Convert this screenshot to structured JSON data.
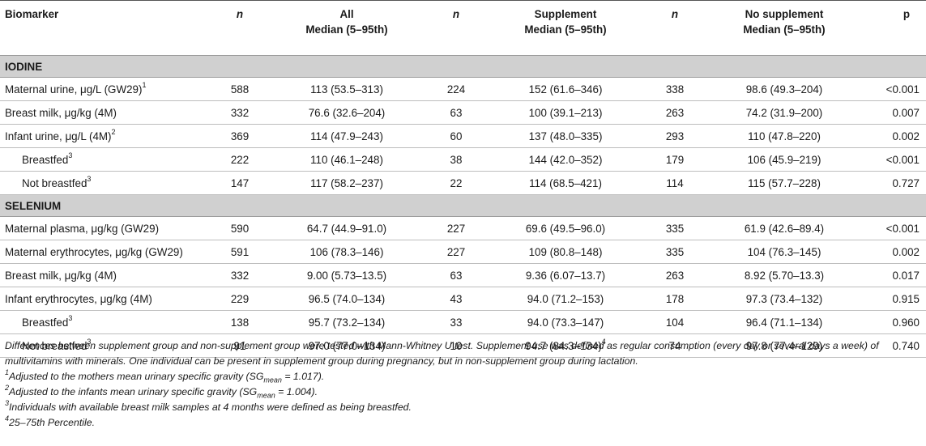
{
  "header": {
    "biomarker": "Biomarker",
    "n1": "n",
    "all_line1": "All",
    "all_line2": "Median (5–95th)",
    "n2": "n",
    "supp_line1": "Supplement",
    "supp_line2": "Median (5–95th)",
    "n3": "n",
    "nosupp_line1": "No supplement",
    "nosupp_line2": "Median (5–95th)",
    "p": "p"
  },
  "sections": [
    {
      "title": "IODINE",
      "rows": [
        {
          "label": "Maternal urine, μg/L (GW29)",
          "sup": "1",
          "n_all": "588",
          "all": "113 (53.5–313)",
          "n_supp": "224",
          "supp": "152 (61.6–346)",
          "supp_sup": "",
          "n_no": "338",
          "no": "98.6 (49.3–204)",
          "p": "<0.001",
          "indent": false
        },
        {
          "label": "Breast milk, μg/kg (4M)",
          "sup": "",
          "n_all": "332",
          "all": "76.6 (32.6–204)",
          "n_supp": "63",
          "supp": "100 (39.1–213)",
          "supp_sup": "",
          "n_no": "263",
          "no": "74.2 (31.9–200)",
          "p": "0.007",
          "indent": false
        },
        {
          "label": "Infant urine, μg/L (4M)",
          "sup": "2",
          "n_all": "369",
          "all": "114 (47.9–243)",
          "n_supp": "60",
          "supp": "137 (48.0–335)",
          "supp_sup": "",
          "n_no": "293",
          "no": "110 (47.8–220)",
          "p": "0.002",
          "indent": false
        },
        {
          "label": "Breastfed",
          "sup": "3",
          "n_all": "222",
          "all": "110 (46.1–248)",
          "n_supp": "38",
          "supp": "144 (42.0–352)",
          "supp_sup": "",
          "n_no": "179",
          "no": "106 (45.9–219)",
          "p": "<0.001",
          "indent": true
        },
        {
          "label": "Not breastfed",
          "sup": "3",
          "n_all": "147",
          "all": "117 (58.2–237)",
          "n_supp": "22",
          "supp": "114 (68.5–421)",
          "supp_sup": "",
          "n_no": "114",
          "no": "115 (57.7–228)",
          "p": "0.727",
          "indent": true
        }
      ]
    },
    {
      "title": "SELENIUM",
      "rows": [
        {
          "label": "Maternal plasma, μg/kg (GW29)",
          "sup": "",
          "n_all": "590",
          "all": "64.7 (44.9–91.0)",
          "n_supp": "227",
          "supp": "69.6 (49.5–96.0)",
          "supp_sup": "",
          "n_no": "335",
          "no": "61.9 (42.6–89.4)",
          "p": "<0.001",
          "indent": false
        },
        {
          "label": "Maternal erythrocytes, μg/kg (GW29)",
          "sup": "",
          "n_all": "591",
          "all": "106 (78.3–146)",
          "n_supp": "227",
          "supp": "109 (80.8–148)",
          "supp_sup": "",
          "n_no": "335",
          "no": "104 (76.3–145)",
          "p": "0.002",
          "indent": false
        },
        {
          "label": "Breast milk, μg/kg (4M)",
          "sup": "",
          "n_all": "332",
          "all": "9.00 (5.73–13.5)",
          "n_supp": "63",
          "supp": "9.36 (6.07–13.7)",
          "supp_sup": "",
          "n_no": "263",
          "no": "8.92 (5.70–13.3)",
          "p": "0.017",
          "indent": false
        },
        {
          "label": "Infant erythrocytes, μg/kg (4M)",
          "sup": "",
          "n_all": "229",
          "all": "96.5 (74.0–134)",
          "n_supp": "43",
          "supp": "94.0 (71.2–153)",
          "supp_sup": "",
          "n_no": "178",
          "no": "97.3 (73.4–132)",
          "p": "0.915",
          "indent": false
        },
        {
          "label": "Breastfed",
          "sup": "3",
          "n_all": "138",
          "all": "95.7 (73.2–134)",
          "n_supp": "33",
          "supp": "94.0 (73.3–147)",
          "supp_sup": "",
          "n_no": "104",
          "no": "96.4 (71.1–134)",
          "p": "0.960",
          "indent": true
        },
        {
          "label": "Not breastfed",
          "sup": "3",
          "n_all": "91",
          "all": "97.0 (77.0–134)",
          "n_supp": "10",
          "supp": "94.7 (84.3–134)",
          "supp_sup": "4",
          "n_no": "74",
          "no": "97.8 (77.4–129)",
          "p": "0.740",
          "indent": true
        }
      ]
    }
  ],
  "notes": {
    "main": "Differences between supplement group and non-supplement group were tested with Mann-Whitney U test. Supplement use was defined as regular consumption (every day or several days a week) of multivitamins with minerals. One individual can be present in supplement group during pregnancy, but in non-supplement group during lactation.",
    "fn1_num": "1",
    "fn1_pre": "Adjusted to the mothers mean urinary specific gravity (SG",
    "fn1_sub": "mean",
    "fn1_post": " = 1.017).",
    "fn2_num": "2",
    "fn2_pre": "Adjusted to the infants mean urinary specific gravity (SG",
    "fn2_sub": "mean",
    "fn2_post": " = 1.004).",
    "fn3_num": "3",
    "fn3_text": "Individuals with available breast milk samples at 4 months were defined as being breastfed.",
    "fn4_num": "4",
    "fn4_text": "25–75th Percentile."
  }
}
